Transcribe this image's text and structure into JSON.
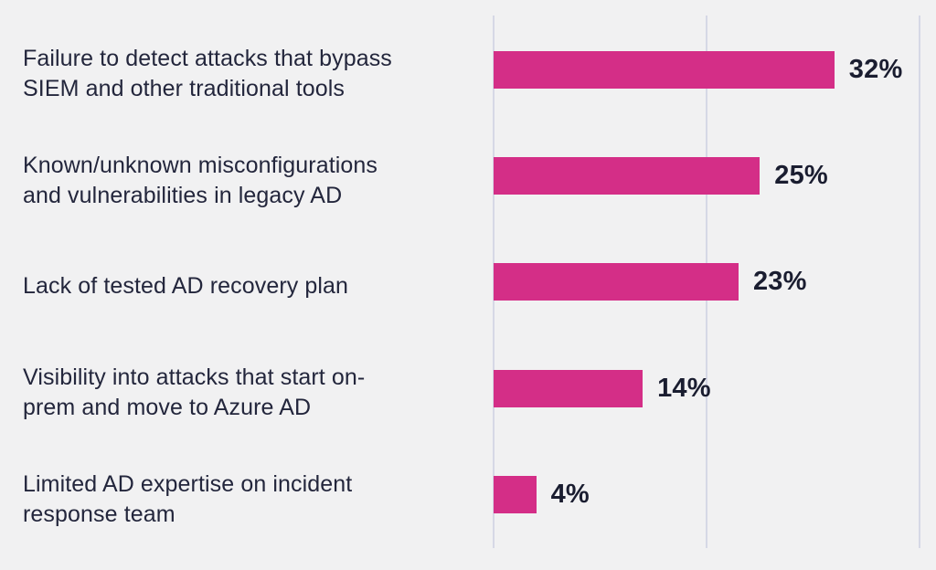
{
  "chart_data": {
    "type": "bar",
    "orientation": "horizontal",
    "title": "",
    "xlabel": "",
    "ylabel": "",
    "xlim": [
      0,
      40
    ],
    "gridlines": [
      0,
      20,
      40
    ],
    "grid": true,
    "legend": false,
    "categories": [
      "Failure to detect attacks that bypass SIEM and other traditional tools",
      "Known/unknown misconfigurations and vulnerabilities in legacy AD",
      "Lack of tested AD recovery plan",
      "Visibility into attacks that start on-prem and move to Azure AD",
      "Limited AD expertise on incident response team"
    ],
    "category_lines": [
      [
        "Failure to detect attacks that bypass",
        "SIEM and other traditional tools"
      ],
      [
        "Known/unknown misconfigurations",
        "and vulnerabilities in legacy AD"
      ],
      [
        "Lack of tested AD recovery plan"
      ],
      [
        "Visibility into attacks that start on-",
        "prem and move to Azure AD"
      ],
      [
        "Limited AD expertise on incident",
        "response team"
      ]
    ],
    "values": [
      32,
      25,
      23,
      14,
      4
    ],
    "value_labels": [
      "32%",
      "25%",
      "23%",
      "14%",
      "4%"
    ],
    "colors": {
      "bar": "#d42e87",
      "background": "#f1f1f2",
      "gridline": "#d6d8e6",
      "category_text": "#23263c",
      "value_text": "#1a1d30"
    }
  }
}
